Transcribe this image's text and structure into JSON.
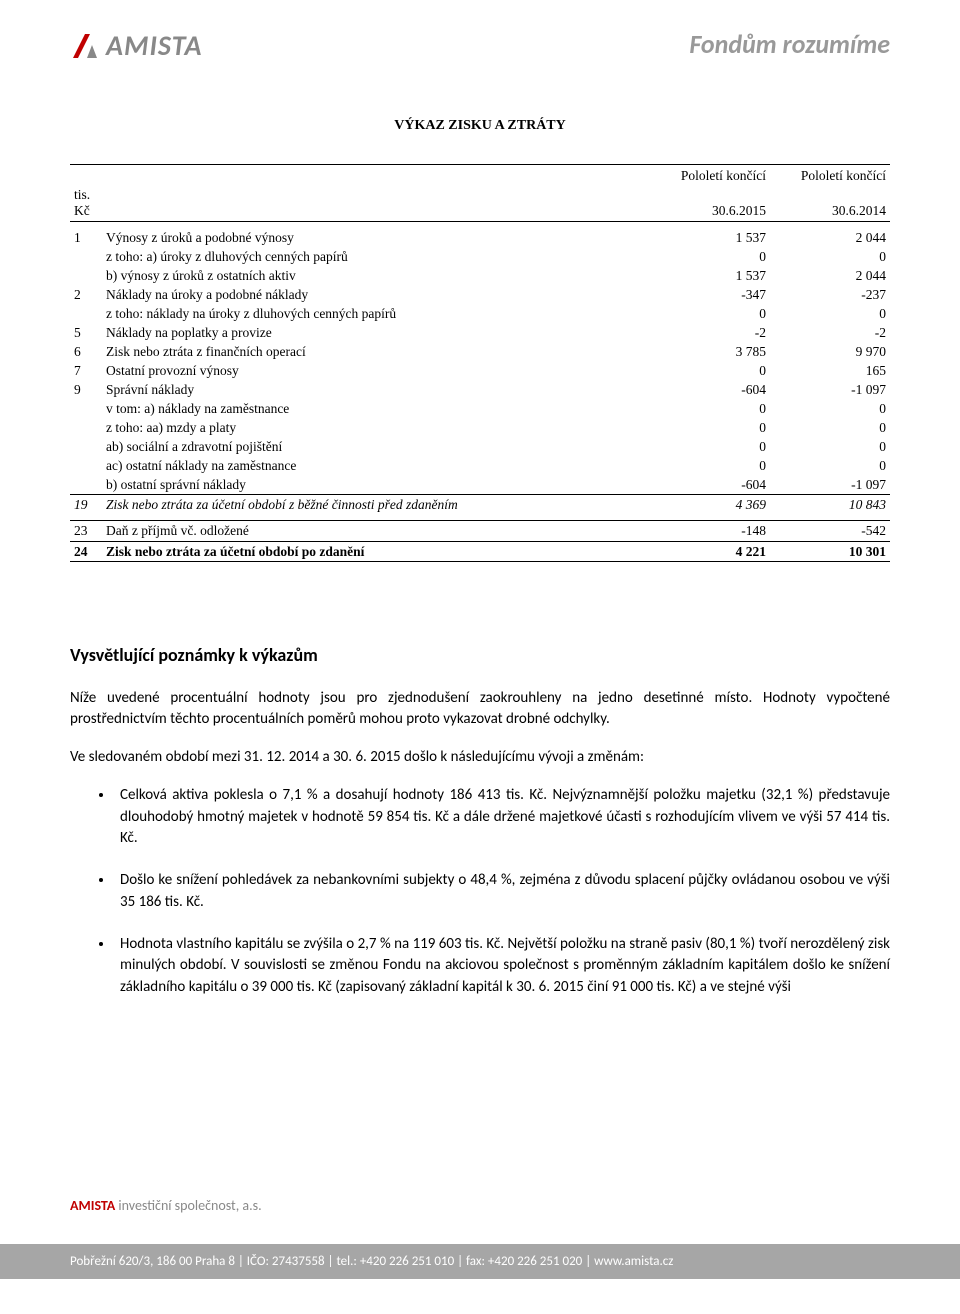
{
  "header": {
    "logo_text": "AMISTA",
    "logo_color_a": "#c00000",
    "logo_color_b": "#888888",
    "tagline": "Fondům rozumíme"
  },
  "table": {
    "title": "VÝKAZ ZISKU A ZTRÁTY",
    "unit": "tis. Kč",
    "col1_h1": "Pololetí končící",
    "col1_h2": "30.6.2015",
    "col2_h1": "Pololetí končící",
    "col2_h2": "30.6.2014",
    "rows": [
      {
        "n": "1",
        "label": "Výnosy z úroků a podobné výnosy",
        "v1": "1 537",
        "v2": "2 044",
        "indent": 0
      },
      {
        "n": "",
        "label": "z toho: a) úroky z dluhových cenných papírů",
        "v1": "0",
        "v2": "0",
        "indent": 1
      },
      {
        "n": "",
        "label": "b) výnosy z úroků z ostatních aktiv",
        "v1": "1 537",
        "v2": "2 044",
        "indent": 2
      },
      {
        "n": "2",
        "label": "Náklady na úroky a podobné náklady",
        "v1": "-347",
        "v2": "-237",
        "indent": 0
      },
      {
        "n": "",
        "label": "z toho: náklady na úroky z dluhových cenných papírů",
        "v1": "0",
        "v2": "0",
        "indent": 1
      },
      {
        "n": "5",
        "label": "Náklady na poplatky a provize",
        "v1": "-2",
        "v2": "-2",
        "indent": 0
      },
      {
        "n": "6",
        "label": "Zisk nebo ztráta z finančních operací",
        "v1": "3 785",
        "v2": "9 970",
        "indent": 0
      },
      {
        "n": "7",
        "label": "Ostatní provozní výnosy",
        "v1": "0",
        "v2": "165",
        "indent": 0
      },
      {
        "n": "9",
        "label": "Správní náklady",
        "v1": "-604",
        "v2": "-1 097",
        "indent": 0
      },
      {
        "n": "",
        "label": "v tom:  a) náklady na zaměstnance",
        "v1": "0",
        "v2": "0",
        "indent": 1
      },
      {
        "n": "",
        "label": "z toho: aa) mzdy a platy",
        "v1": "0",
        "v2": "0",
        "indent": 2
      },
      {
        "n": "",
        "label": "ab) sociální a zdravotní pojištění",
        "v1": "0",
        "v2": "0",
        "indent": 3
      },
      {
        "n": "",
        "label": "ac) ostatní náklady na zaměstnance",
        "v1": "0",
        "v2": "0",
        "indent": 3
      },
      {
        "n": "",
        "label": "b) ostatní správní náklady",
        "v1": "-604",
        "v2": "-1 097",
        "indent": 2
      }
    ],
    "subtotal": {
      "n": "19",
      "label": "Zisk nebo ztráta za účetní období z běžné činnosti před zdaněním",
      "v1": "4 369",
      "v2": "10 843"
    },
    "tax": {
      "n": "23",
      "label": "Daň z příjmů vč. odložené",
      "v1": "-148",
      "v2": "-542"
    },
    "total": {
      "n": "24",
      "label": "Zisk nebo ztráta za účetní období po zdanění",
      "v1": "4 221",
      "v2": "10 301"
    }
  },
  "notes": {
    "heading": "Vysvětlující poznámky k výkazům",
    "p1": "Níže uvedené procentuální hodnoty jsou pro zjednodušení zaokrouhleny na jedno desetinné místo. Hodnoty vypočtené prostřednictvím těchto procentuálních poměrů mohou proto vykazovat drobné odchylky.",
    "p2": "Ve sledovaném období mezi 31. 12. 2014 a 30. 6. 2015 došlo k následujícímu vývoji a změnám:",
    "bullets": [
      "Celková aktiva poklesla o 7,1 % a dosahují hodnoty 186 413 tis. Kč. Nejvýznamnější položku majetku (32,1 %) představuje dlouhodobý hmotný majetek v hodnotě 59 854 tis. Kč a dále držené majetkové účasti s rozhodujícím vlivem ve výši 57 414 tis. Kč.",
      "Došlo ke snížení pohledávek za nebankovními subjekty o 48,4 %, zejména z důvodu splacení půjčky ovládanou osobou ve výši 35 186 tis. Kč.",
      "Hodnota vlastního kapitálu se zvýšila o 2,7 % na 119 603 tis. Kč. Největší položku na straně pasiv (80,1 %) tvoří nerozdělený zisk minulých období. V souvislosti se změnou Fondu na akciovou společnost s proměnným základním kapitálem došlo ke snížení základního kapitálu o 39 000 tis. Kč (zapisovaný základní kapitál k 30. 6. 2015 činí 91 000 tis. Kč) a ve stejné výši"
    ]
  },
  "footer": {
    "brand": "AMISTA",
    "suffix": " investiční společnost, a.s.",
    "bar": "Pobřežní 620/3, 186 00 Praha 8 | IČO: 27437558 | tel.: +420 226 251 010 | fax: +420 226 251 020 | www.amista.cz"
  }
}
